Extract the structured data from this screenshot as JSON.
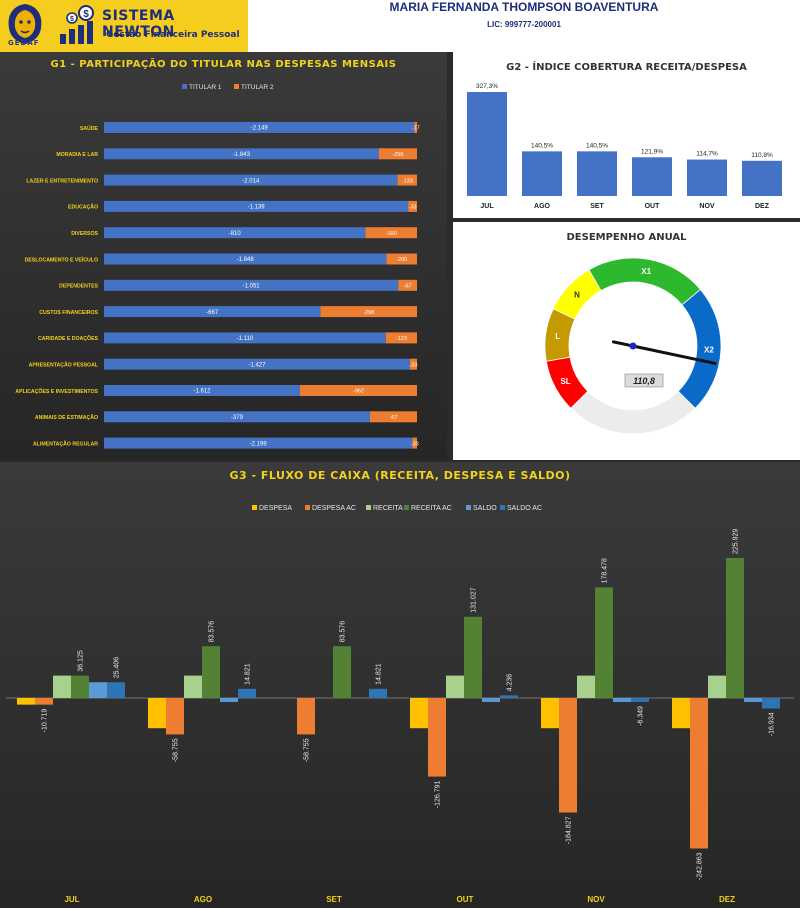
{
  "header": {
    "brand_title": "SISTEMA NEWTON",
    "brand_subtitle": "Gestão Financeira Pessoal",
    "logo_caption": "GEDAF",
    "owner_name": "MARIA FERNANDA THOMPSON BOAVENTURA",
    "license": "LIC: 999777-200001"
  },
  "colors": {
    "titular1": "#4472c4",
    "titular2": "#ed7d31",
    "accent_yellow": "#f2d21a",
    "g2_bar": "#4472c4"
  },
  "chart_data": [
    {
      "id": "g1",
      "type": "bar",
      "orientation": "horizontal-stacked",
      "title": "G1 - PARTICIPAÇÃO DO TITULAR NAS DESPESAS MENSAIS",
      "legend_position": "top",
      "categories": [
        "SAÚDE",
        "MORADIA E LAR",
        "LAZER E ENTRETENIMENTO",
        "EDUCAÇÃO",
        "DIVERSOS",
        "DESLOCAMENTO E VEÍCULO",
        "DEPENDENTES",
        "CUSTOS FINANCEIROS",
        "CARIDADE E DOAÇÕES",
        "APRESENTAÇÃO PESSOAL",
        "APLICAÇÕES E INVESTIMENTOS",
        "ANIMAIS DE ESTIMAÇÃO",
        "ALIMENTAÇÃO REGULAR"
      ],
      "series": [
        {
          "name": "TITULAR 1",
          "values": [
            -2149,
            -1843,
            -2014,
            -1139,
            -810,
            -1848,
            -1051,
            -667,
            -1110,
            -1427,
            -1612,
            -379,
            -2199
          ],
          "labels": [
            "-2.149",
            "-1.843",
            "-2.014",
            "-1.139",
            "-810",
            "-1.848",
            "-1.051",
            "-667",
            "-1.110",
            "-1.427",
            "-1.612",
            "-379",
            "-2.199"
          ]
        },
        {
          "name": "TITULAR 2",
          "values": [
            -17,
            -256,
            -133,
            -33,
            -160,
            -200,
            -67,
            -298,
            -123,
            -33,
            -962,
            -67,
            -33
          ],
          "labels": [
            "-17",
            "-256",
            "-133",
            "-33",
            "-160",
            "-200",
            "-67",
            "-298",
            "-123",
            "-33",
            "-962",
            "-67",
            "-33"
          ]
        }
      ],
      "grid": false
    },
    {
      "id": "g2",
      "type": "bar",
      "title": "G2 - ÍNDICE COBERTURA RECEITA/DESPESA",
      "categories": [
        "JUL",
        "AGO",
        "SET",
        "OUT",
        "NOV",
        "DEZ"
      ],
      "values": [
        327.3,
        140.5,
        140.5,
        121.9,
        114.7,
        110.8
      ],
      "labels": [
        "327,3%",
        "140,5%",
        "140,5%",
        "121,9%",
        "114,7%",
        "110,8%"
      ],
      "grid": false
    },
    {
      "id": "gauge",
      "type": "gauge",
      "title": "DESEMPENHO ANUAL",
      "segments": [
        {
          "label": "SL",
          "color": "#ff0000"
        },
        {
          "label": "L",
          "color": "#c49a00"
        },
        {
          "label": "N",
          "color": "#ffff00"
        },
        {
          "label": "X1",
          "color": "#2eb82e"
        },
        {
          "label": "X2",
          "color": "#0a6ac7"
        }
      ],
      "value": 110.8,
      "value_label": "110,8"
    },
    {
      "id": "g3",
      "type": "bar",
      "title": "G3 - FLUXO DE CAIXA (RECEITA, DESPESA E SALDO)",
      "legend_position": "top",
      "categories": [
        "JUL",
        "AGO",
        "SET",
        "OUT",
        "NOV",
        "DEZ"
      ],
      "series": [
        {
          "name": "DESPESA",
          "color": "#ffc000",
          "values": [
            -10719,
            -48755,
            0,
            -48755,
            -48755,
            -48755
          ],
          "labels": [
            "",
            "",
            "",
            "",
            "",
            ""
          ]
        },
        {
          "name": "DESPESA AC",
          "color": "#ed7d31",
          "values": [
            -10719,
            -58755,
            -58755,
            -126791,
            -184827,
            -242863
          ],
          "labels": [
            "-10.719",
            "-58.755",
            "-58.755",
            "-126.791",
            "-184.827",
            "-242.863"
          ]
        },
        {
          "name": "RECEITA",
          "color": "#a9d18e",
          "values": [
            36125,
            36125,
            0,
            36125,
            36125,
            36125
          ],
          "labels": [
            "",
            "",
            "",
            "",
            "",
            ""
          ]
        },
        {
          "name": "RECEITA AC",
          "color": "#548235",
          "values": [
            36125,
            83576,
            83576,
            131027,
            178478,
            225929
          ],
          "labels": [
            "36.125",
            "83.576",
            "83.576",
            "131.027",
            "178.478",
            "225.929"
          ]
        },
        {
          "name": "SALDO",
          "color": "#5b9bd5",
          "values": [
            25406,
            -6349,
            0,
            -6349,
            -6349,
            -6349
          ],
          "labels": [
            "",
            "",
            "",
            "",
            "",
            ""
          ]
        },
        {
          "name": "SALDO AC",
          "color": "#2e75b6",
          "values": [
            25406,
            14821,
            14821,
            4236,
            -6349,
            -16934
          ],
          "labels": [
            "25.406",
            "14.821",
            "14.821",
            "4.236",
            "-6.349",
            "-16.934"
          ]
        }
      ],
      "grid": false
    }
  ]
}
